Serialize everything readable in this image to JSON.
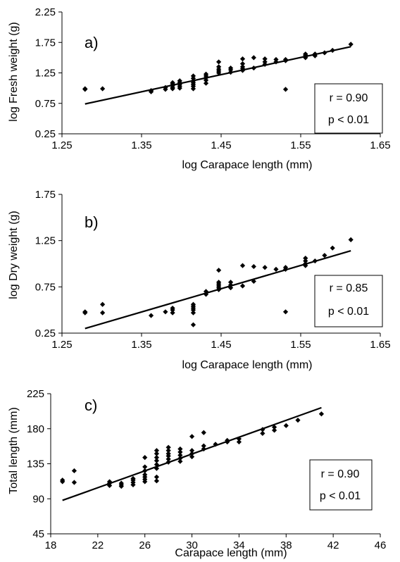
{
  "chart_data": [
    {
      "type": "scatter",
      "panel_label": "a)",
      "xlabel": "log Carapace length (mm)",
      "ylabel": "log Fresh weight (g)",
      "xlim": [
        1.25,
        1.65
      ],
      "ylim": [
        0.25,
        2.25
      ],
      "xticks": [
        1.25,
        1.35,
        1.45,
        1.55,
        1.65
      ],
      "xtick_labels": [
        "1.25",
        "1.35",
        "1.45",
        "1.55",
        "1.65"
      ],
      "yticks": [
        0.25,
        0.75,
        1.25,
        1.75,
        2.25
      ],
      "ytick_labels": [
        "0.25",
        "0.75",
        "1.25",
        "1.75",
        "2.25"
      ],
      "stats": [
        "r = 0.90",
        "p < 0.01"
      ],
      "grid": false,
      "trendline": {
        "x": [
          1.279,
          1.613
        ],
        "y": [
          0.74,
          1.68
        ]
      },
      "points": [
        [
          1.279,
          0.98
        ],
        [
          1.279,
          0.99
        ],
        [
          1.301,
          0.99
        ],
        [
          1.362,
          0.94
        ],
        [
          1.362,
          0.96
        ],
        [
          1.38,
          0.98
        ],
        [
          1.38,
          1.01
        ],
        [
          1.389,
          0.99
        ],
        [
          1.389,
          1.01
        ],
        [
          1.389,
          1.04
        ],
        [
          1.389,
          1.07
        ],
        [
          1.389,
          1.09
        ],
        [
          1.398,
          1.0
        ],
        [
          1.398,
          1.03
        ],
        [
          1.398,
          1.06
        ],
        [
          1.398,
          1.09
        ],
        [
          1.398,
          1.12
        ],
        [
          1.415,
          0.99
        ],
        [
          1.415,
          1.03
        ],
        [
          1.415,
          1.06
        ],
        [
          1.415,
          1.09
        ],
        [
          1.415,
          1.12
        ],
        [
          1.415,
          1.16
        ],
        [
          1.415,
          1.2
        ],
        [
          1.431,
          1.08
        ],
        [
          1.431,
          1.13
        ],
        [
          1.431,
          1.17
        ],
        [
          1.431,
          1.2
        ],
        [
          1.431,
          1.23
        ],
        [
          1.447,
          1.25
        ],
        [
          1.447,
          1.28
        ],
        [
          1.447,
          1.31
        ],
        [
          1.447,
          1.35
        ],
        [
          1.447,
          1.43
        ],
        [
          1.462,
          1.26
        ],
        [
          1.462,
          1.3
        ],
        [
          1.462,
          1.33
        ],
        [
          1.477,
          1.29
        ],
        [
          1.477,
          1.32
        ],
        [
          1.477,
          1.35
        ],
        [
          1.477,
          1.4
        ],
        [
          1.477,
          1.48
        ],
        [
          1.491,
          1.33
        ],
        [
          1.491,
          1.5
        ],
        [
          1.505,
          1.39
        ],
        [
          1.505,
          1.43
        ],
        [
          1.505,
          1.48
        ],
        [
          1.519,
          1.43
        ],
        [
          1.519,
          1.47
        ],
        [
          1.531,
          1.45
        ],
        [
          1.531,
          1.47
        ],
        [
          1.531,
          0.98
        ],
        [
          1.556,
          1.5
        ],
        [
          1.556,
          1.52
        ],
        [
          1.556,
          1.54
        ],
        [
          1.556,
          1.56
        ],
        [
          1.568,
          1.53
        ],
        [
          1.568,
          1.56
        ],
        [
          1.58,
          1.58
        ],
        [
          1.59,
          1.62
        ],
        [
          1.613,
          1.72
        ]
      ]
    },
    {
      "type": "scatter",
      "panel_label": "b)",
      "xlabel": "log Carapace length (mm)",
      "ylabel": "log Dry weight (g)",
      "xlim": [
        1.25,
        1.65
      ],
      "ylim": [
        0.25,
        1.75
      ],
      "xticks": [
        1.25,
        1.35,
        1.45,
        1.55,
        1.65
      ],
      "xtick_labels": [
        "1.25",
        "1.35",
        "1.45",
        "1.55",
        "1.65"
      ],
      "yticks": [
        0.25,
        0.75,
        1.25,
        1.75
      ],
      "ytick_labels": [
        "0.25",
        "0.75",
        "1.25",
        "1.75"
      ],
      "stats": [
        "r = 0.85",
        "p < 0.01"
      ],
      "grid": false,
      "trendline": {
        "x": [
          1.279,
          1.613
        ],
        "y": [
          0.3,
          1.14
        ]
      },
      "points": [
        [
          1.279,
          0.47
        ],
        [
          1.279,
          0.48
        ],
        [
          1.301,
          0.56
        ],
        [
          1.301,
          0.47
        ],
        [
          1.362,
          0.44
        ],
        [
          1.38,
          0.48
        ],
        [
          1.389,
          0.47
        ],
        [
          1.389,
          0.5
        ],
        [
          1.389,
          0.52
        ],
        [
          1.415,
          0.34
        ],
        [
          1.415,
          0.47
        ],
        [
          1.415,
          0.5
        ],
        [
          1.415,
          0.52
        ],
        [
          1.415,
          0.54
        ],
        [
          1.415,
          0.56
        ],
        [
          1.431,
          0.67
        ],
        [
          1.431,
          0.7
        ],
        [
          1.447,
          0.72
        ],
        [
          1.447,
          0.74
        ],
        [
          1.447,
          0.76
        ],
        [
          1.447,
          0.78
        ],
        [
          1.447,
          0.8
        ],
        [
          1.447,
          0.93
        ],
        [
          1.462,
          0.74
        ],
        [
          1.462,
          0.77
        ],
        [
          1.462,
          0.8
        ],
        [
          1.477,
          0.76
        ],
        [
          1.477,
          0.98
        ],
        [
          1.491,
          0.81
        ],
        [
          1.491,
          0.97
        ],
        [
          1.505,
          0.96
        ],
        [
          1.519,
          0.94
        ],
        [
          1.531,
          0.94
        ],
        [
          1.531,
          0.96
        ],
        [
          1.531,
          0.48
        ],
        [
          1.556,
          0.98
        ],
        [
          1.556,
          1.0
        ],
        [
          1.556,
          1.03
        ],
        [
          1.556,
          1.06
        ],
        [
          1.568,
          1.03
        ],
        [
          1.58,
          1.09
        ],
        [
          1.59,
          1.17
        ],
        [
          1.613,
          1.26
        ]
      ]
    },
    {
      "type": "scatter",
      "panel_label": "c)",
      "xlabel": "Carapace length (mm)",
      "ylabel": "Total length (mm)",
      "xlim": [
        18,
        46
      ],
      "ylim": [
        45,
        225
      ],
      "xticks": [
        18,
        22,
        26,
        30,
        34,
        38,
        42,
        46
      ],
      "xtick_labels": [
        "18",
        "22",
        "26",
        "30",
        "34",
        "38",
        "42",
        "46"
      ],
      "yticks": [
        45,
        90,
        135,
        180,
        225
      ],
      "ytick_labels": [
        "45",
        "90",
        "135",
        "180",
        "225"
      ],
      "stats": [
        "r = 0.90",
        "p < 0.01"
      ],
      "grid": false,
      "trendline": {
        "x": [
          19,
          41
        ],
        "y": [
          88,
          207
        ]
      },
      "points": [
        [
          19,
          112
        ],
        [
          19,
          114
        ],
        [
          20,
          111
        ],
        [
          20,
          126
        ],
        [
          23,
          107
        ],
        [
          23,
          110
        ],
        [
          23,
          112
        ],
        [
          24,
          106
        ],
        [
          24,
          108
        ],
        [
          24,
          110
        ],
        [
          25,
          108
        ],
        [
          25,
          111
        ],
        [
          25,
          114
        ],
        [
          25,
          116
        ],
        [
          26,
          112
        ],
        [
          26,
          115
        ],
        [
          26,
          118
        ],
        [
          26,
          121
        ],
        [
          26,
          126
        ],
        [
          26,
          131
        ],
        [
          26,
          143
        ],
        [
          27,
          113
        ],
        [
          27,
          118
        ],
        [
          27,
          129
        ],
        [
          27,
          134
        ],
        [
          27,
          139
        ],
        [
          27,
          143
        ],
        [
          27,
          148
        ],
        [
          27,
          152
        ],
        [
          28,
          137
        ],
        [
          28,
          141
        ],
        [
          28,
          145
        ],
        [
          28,
          148
        ],
        [
          28,
          152
        ],
        [
          28,
          156
        ],
        [
          29,
          138
        ],
        [
          29,
          142
        ],
        [
          29,
          146
        ],
        [
          29,
          150
        ],
        [
          29,
          154
        ],
        [
          30,
          144
        ],
        [
          30,
          148
        ],
        [
          30,
          152
        ],
        [
          30,
          170
        ],
        [
          31,
          154
        ],
        [
          31,
          158
        ],
        [
          31,
          175
        ],
        [
          32,
          160
        ],
        [
          33,
          163
        ],
        [
          33,
          165
        ],
        [
          34,
          163
        ],
        [
          34,
          167
        ],
        [
          36,
          174
        ],
        [
          36,
          179
        ],
        [
          37,
          178
        ],
        [
          37,
          182
        ],
        [
          38,
          184
        ],
        [
          39,
          191
        ],
        [
          41,
          199
        ]
      ]
    }
  ]
}
